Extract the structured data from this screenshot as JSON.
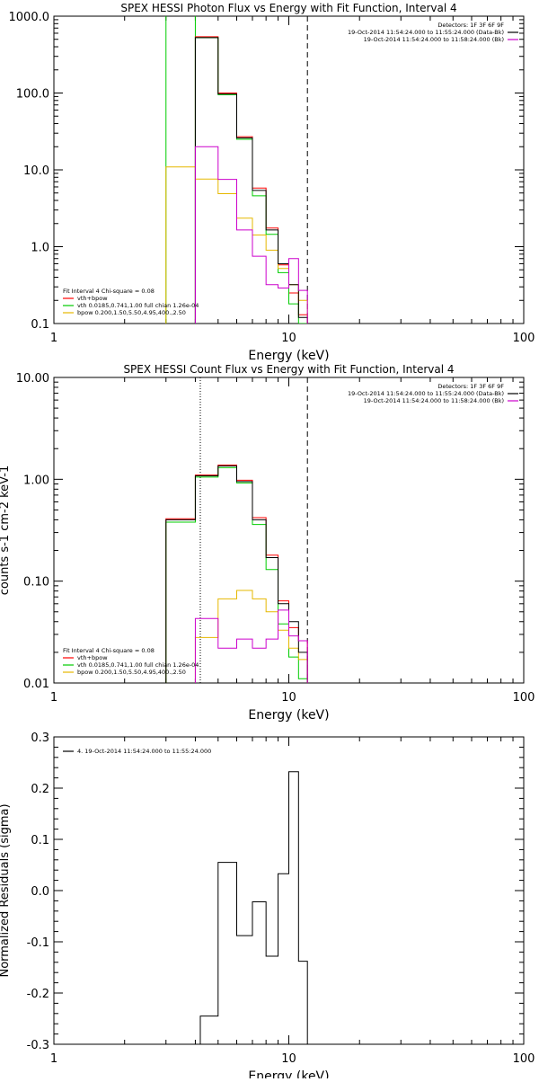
{
  "colors": {
    "data": "#000000",
    "total": "#ff0000",
    "vth": "#00cc00",
    "bpow": "#e6b800",
    "background": "#cc00cc"
  },
  "chart_data": [
    {
      "type": "line",
      "step": true,
      "title": "SPEX HESSI Photon Flux vs Energy with Fit Function, Interval 4",
      "xlabel": "Energy (keV)",
      "ylabel": "",
      "xscale": "log",
      "yscale": "log",
      "xlim": [
        1,
        100
      ],
      "ylim": [
        0.1,
        1000
      ],
      "xticks": [
        1,
        10,
        100
      ],
      "xtick_labels": [
        "1",
        "10",
        "100"
      ],
      "yticks": [
        0.1,
        1,
        10,
        100,
        1000
      ],
      "ytick_labels": [
        "0.1",
        "1.0",
        "10.0",
        "100.0",
        "1000.0"
      ],
      "bin_edges": [
        3.0,
        4.0,
        5.0,
        6.0,
        7.0,
        8.0,
        9.0,
        10.0,
        11.0,
        12.0
      ],
      "series": [
        {
          "name": "vth+bpow",
          "color_key": "total",
          "values": [
            null,
            540,
            100,
            27,
            5.8,
            1.75,
            0.58,
            0.25,
            0.13
          ]
        },
        {
          "name": "vth 0.0185,0.741,1.00  full chian 1.26e-04",
          "color_key": "vth",
          "values": [
            null,
            525,
            95,
            25,
            4.6,
            1.45,
            0.46,
            0.18,
            0.1
          ]
        },
        {
          "name": "bpow 0.200,1.50,5.50,4.95,400.,2.50",
          "color_key": "bpow",
          "values": [
            10.9,
            7.6,
            4.9,
            2.35,
            1.42,
            0.9,
            0.52,
            0.32,
            0.2
          ]
        },
        {
          "name": "",
          "color_key": "data",
          "values": [
            null,
            525,
            97,
            26,
            5.4,
            1.65,
            0.6,
            0.32,
            0.12
          ]
        },
        {
          "name": "",
          "color_key": "background",
          "values": [
            null,
            20,
            7.5,
            1.65,
            0.75,
            0.32,
            0.29,
            0.7,
            0.27
          ]
        }
      ],
      "vlines": [
        {
          "x": 3.0,
          "color_key": "vth",
          "style": "solid"
        },
        {
          "x": 4.0,
          "color_key": "vth",
          "style": "solid"
        },
        {
          "x": 12.0,
          "color_key": "data",
          "style": "dashed"
        }
      ],
      "legend_top_right": {
        "lines": [
          {
            "text": "Detectors: 1F 3F 6F 9F",
            "color_key": null
          },
          {
            "text": "19-Oct-2014 11:54:24.000 to 11:55:24.000 (Data-Bk)",
            "color_key": "data"
          },
          {
            "text": "19-Oct-2014 11:54:24.000 to 11:58:24.000 (Bk)",
            "color_key": "background"
          }
        ]
      },
      "legend_bottom_left": {
        "header": "Fit Interval  4    Chi-square = 0.08",
        "lines": [
          {
            "text": "vth+bpow",
            "color_key": "total"
          },
          {
            "text": "vth 0.0185,0.741,1.00  full chian 1.26e-04",
            "color_key": "vth"
          },
          {
            "text": "bpow 0.200,1.50,5.50,4.95,400.,2.50",
            "color_key": "bpow"
          }
        ]
      }
    },
    {
      "type": "line",
      "step": true,
      "title": "SPEX HESSI Count Flux vs Energy with Fit Function, Interval 4",
      "xlabel": "Energy (keV)",
      "ylabel": "counts s-1 cm-2 keV-1",
      "xscale": "log",
      "yscale": "log",
      "xlim": [
        1,
        100
      ],
      "ylim": [
        0.01,
        10
      ],
      "xticks": [
        1,
        10,
        100
      ],
      "xtick_labels": [
        "1",
        "10",
        "100"
      ],
      "yticks": [
        0.01,
        0.1,
        1,
        10
      ],
      "ytick_labels": [
        "0.01",
        "0.10",
        "1.00",
        "10.00"
      ],
      "bin_edges": [
        3.0,
        4.0,
        5.0,
        6.0,
        7.0,
        8.0,
        9.0,
        10.0,
        11.0,
        12.0
      ],
      "series": [
        {
          "name": "vth+bpow",
          "color_key": "total",
          "values": [
            0.41,
            1.1,
            1.38,
            0.98,
            0.42,
            0.18,
            0.064,
            0.035,
            0.026
          ]
        },
        {
          "name": "vth 0.0185,0.741,1.00  full chian 1.26e-04",
          "color_key": "vth",
          "values": [
            0.38,
            1.05,
            1.3,
            0.92,
            0.36,
            0.13,
            0.038,
            0.018,
            0.011
          ]
        },
        {
          "name": "bpow 0.200,1.50,5.50,4.95,400.,2.50",
          "color_key": "bpow",
          "values": [
            null,
            0.028,
            0.067,
            0.081,
            0.067,
            0.05,
            0.033,
            0.022,
            0.017
          ]
        },
        {
          "name": "",
          "color_key": "data",
          "values": [
            0.4,
            1.08,
            1.35,
            0.95,
            0.4,
            0.17,
            0.06,
            0.04,
            0.02
          ]
        },
        {
          "name": "",
          "color_key": "background",
          "values": [
            null,
            0.043,
            0.022,
            0.027,
            0.022,
            0.027,
            0.052,
            0.029,
            0.026
          ]
        }
      ],
      "vlines": [
        {
          "x": 4.2,
          "color_key": "data",
          "style": "dotted"
        },
        {
          "x": 12.0,
          "color_key": "data",
          "style": "dashed"
        }
      ],
      "legend_top_right": {
        "lines": [
          {
            "text": "Detectors: 1F 3F 6F 9F",
            "color_key": null
          },
          {
            "text": "19-Oct-2014 11:54:24.000 to 11:55:24.000 (Data-Bk)",
            "color_key": "data"
          },
          {
            "text": "19-Oct-2014 11:54:24.000 to 11:58:24.000 (Bk)",
            "color_key": "background"
          }
        ]
      },
      "legend_bottom_left": {
        "header": "Fit Interval  4    Chi-square = 0.08",
        "lines": [
          {
            "text": "vth+bpow",
            "color_key": "total"
          },
          {
            "text": "vth 0.0185,0.741,1.00  full chian 1.26e-04",
            "color_key": "vth"
          },
          {
            "text": "bpow 0.200,1.50,5.50,4.95,400.,2.50",
            "color_key": "bpow"
          }
        ]
      }
    },
    {
      "type": "line",
      "step": true,
      "title": "",
      "xlabel": "Energy (keV)",
      "ylabel": "Normalized Residuals (sigma)",
      "xscale": "log",
      "yscale": "linear",
      "xlim": [
        1,
        100
      ],
      "ylim": [
        -0.3,
        0.3
      ],
      "xticks": [
        1,
        10,
        100
      ],
      "xtick_labels": [
        "1",
        "10",
        "100"
      ],
      "yticks": [
        -0.3,
        -0.2,
        -0.1,
        0.0,
        0.1,
        0.2,
        0.3
      ],
      "ytick_labels": [
        "-0.3",
        "-0.2",
        "-0.1",
        "0.0",
        "0.1",
        "0.2",
        "0.3"
      ],
      "bin_edges": [
        4.2,
        5.0,
        6.0,
        7.0,
        8.0,
        9.0,
        10.0,
        11.0,
        12.0
      ],
      "series": [
        {
          "name": "4. 19-Oct-2014 11:54:24.000 to 11:55:24.000",
          "color_key": "data",
          "values": [
            -0.245,
            0.055,
            -0.088,
            -0.022,
            -0.128,
            0.033,
            0.232,
            -0.138
          ]
        }
      ],
      "residual_drop_to": -0.3,
      "legend_top_left": {
        "lines": [
          {
            "text": "4. 19-Oct-2014 11:54:24.000 to 11:55:24.000",
            "color_key": "data"
          }
        ]
      }
    }
  ]
}
